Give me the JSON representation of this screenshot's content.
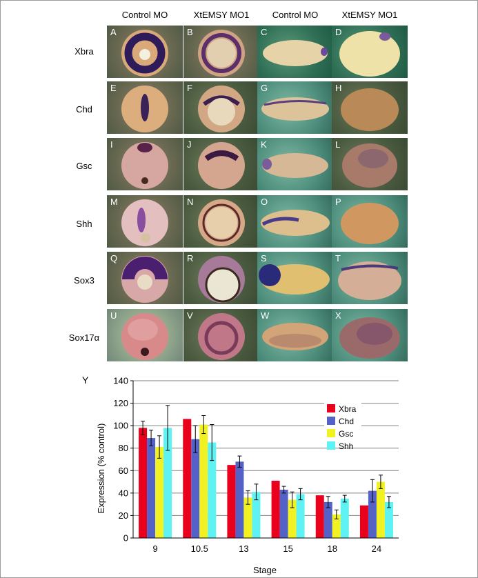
{
  "columns": [
    "Control MO",
    "XtEMSY MO1",
    "Control MO",
    "XtEMSY MO1"
  ],
  "rows": [
    "Xbra",
    "Chd",
    "Gsc",
    "Shh",
    "Sox3",
    "Sox17α"
  ],
  "panel_letters": [
    "A",
    "B",
    "C",
    "D",
    "E",
    "F",
    "G",
    "H",
    "I",
    "J",
    "K",
    "L",
    "M",
    "N",
    "O",
    "P",
    "Q",
    "R",
    "S",
    "T",
    "U",
    "V",
    "W",
    "X"
  ],
  "chart_data": {
    "type": "bar",
    "panel_label": "Y",
    "categories": [
      "9",
      "10.5",
      "13",
      "15",
      "18",
      "24"
    ],
    "series": [
      {
        "name": "Xbra",
        "color": "#e8001c",
        "values": [
          98,
          106,
          65,
          51,
          38,
          29
        ],
        "errors": [
          6,
          0,
          0,
          0,
          0,
          0
        ]
      },
      {
        "name": "Chd",
        "color": "#5462c8",
        "values": [
          89,
          88,
          68,
          43,
          32,
          42
        ],
        "errors": [
          7,
          12,
          5,
          3,
          5,
          10
        ]
      },
      {
        "name": "Gsc",
        "color": "#f2f222",
        "values": [
          81,
          101,
          36,
          34,
          21,
          50
        ],
        "errors": [
          10,
          8,
          6,
          7,
          4,
          6
        ]
      },
      {
        "name": "Shh",
        "color": "#5ef2f2",
        "values": [
          98,
          85,
          41,
          39,
          35,
          32
        ],
        "errors": [
          20,
          16,
          7,
          5,
          3,
          5
        ]
      }
    ],
    "xlabel": "Stage",
    "ylabel": "Expression (% control)",
    "ylim": [
      0,
      140
    ],
    "yticks": [
      "0",
      "20",
      "40",
      "60",
      "80",
      "100",
      "120",
      "140"
    ],
    "grid": true,
    "legend_position": "top-right"
  }
}
